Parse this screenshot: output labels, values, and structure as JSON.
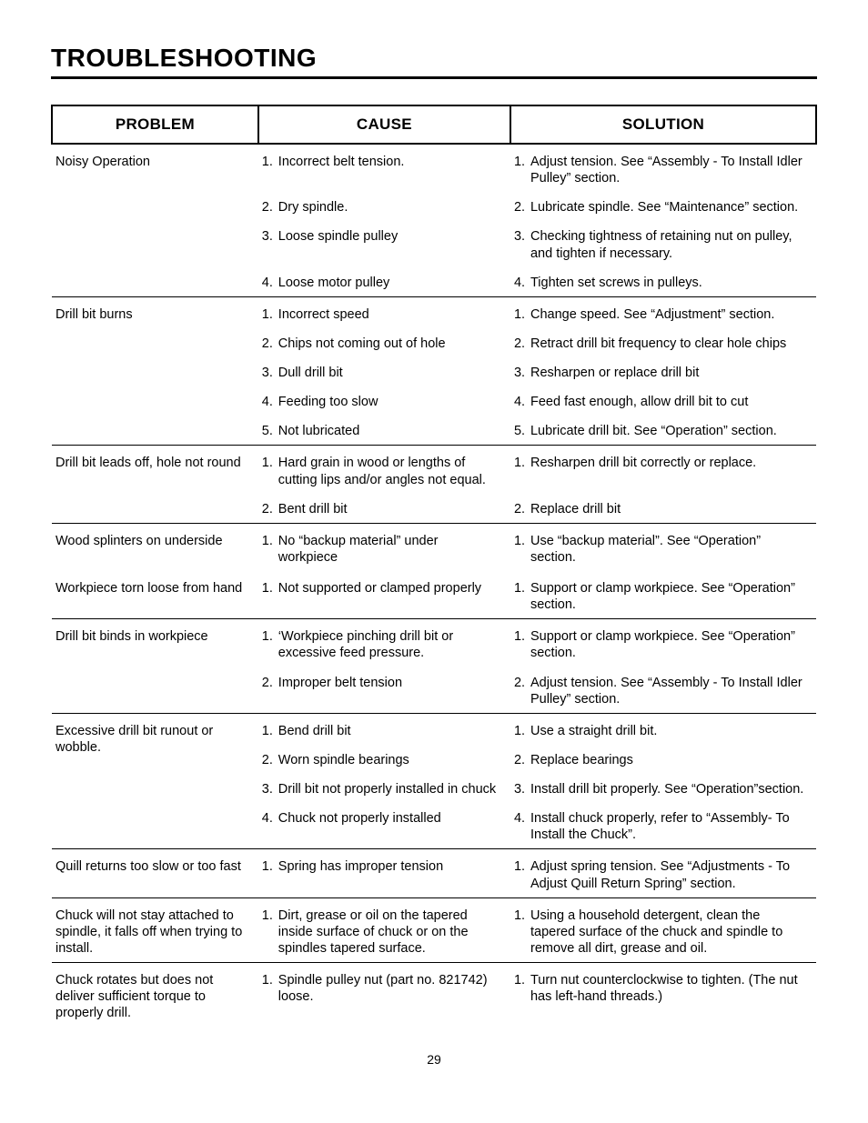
{
  "page": {
    "title": "TROUBLESHOOTING",
    "page_number": "29"
  },
  "headers": {
    "problem": "PROBLEM",
    "cause": "CAUSE",
    "solution": "SOLUTION"
  },
  "groups": [
    {
      "problem": "Noisy Operation",
      "rows": [
        {
          "n": "1.",
          "cause": "Incorrect belt tension.",
          "solution": "Adjust tension.  See “Assembly - To Install Idler Pulley” section."
        },
        {
          "n": "2.",
          "cause": "Dry spindle.",
          "solution": "Lubricate spindle. See “Maintenance” section."
        },
        {
          "n": "3.",
          "cause": "Loose spindle pulley",
          "solution": "Checking tightness of retaining nut on pulley, and tighten if necessary."
        },
        {
          "n": "4.",
          "cause": "Loose motor pulley",
          "solution": "Tighten set screws in pulleys."
        }
      ],
      "sep_after": true
    },
    {
      "problem": "Drill bit burns",
      "rows": [
        {
          "n": "1.",
          "cause": "Incorrect speed",
          "solution": "Change speed. See “Adjustment” section."
        },
        {
          "n": "2.",
          "cause": "Chips not coming out of hole",
          "solution": "Retract drill bit frequency to clear hole chips"
        },
        {
          "n": "3.",
          "cause": "Dull drill bit",
          "solution": "Resharpen or replace drill bit"
        },
        {
          "n": "4.",
          "cause": "Feeding too slow",
          "solution": "Feed fast enough, allow drill bit to cut"
        },
        {
          "n": "5.",
          "cause": "Not lubricated",
          "solution": "Lubricate drill bit. See “Operation” section."
        }
      ],
      "sep_after": true
    },
    {
      "problem": "Drill bit leads off, hole not round",
      "rows": [
        {
          "n": "1.",
          "cause": "Hard grain in wood or lengths of cutting lips and/or angles not equal.",
          "solution": "Resharpen drill bit correctly or replace."
        },
        {
          "n": "2.",
          "cause": "Bent drill bit",
          "solution": "Replace drill bit"
        }
      ],
      "sep_after": true
    },
    {
      "problem": "Wood splinters on underside",
      "rows": [
        {
          "n": "1.",
          "cause": "No “backup material” under workpiece",
          "solution": "Use “backup material”. See “Operation” section."
        }
      ],
      "sep_after": false
    },
    {
      "problem": "Workpiece torn loose from hand",
      "rows": [
        {
          "n": "1.",
          "cause": "Not supported or clamped properly",
          "solution": "Support or clamp workpiece. See “Operation” section."
        }
      ],
      "sep_after": true
    },
    {
      "problem": "Drill bit binds in workpiece",
      "rows": [
        {
          "n": "1.",
          "cause": "‘Workpiece pinching drill bit or excessive feed pressure.",
          "solution": "Support or clamp workpiece. See “Operation” section."
        },
        {
          "n": "2.",
          "cause": "Improper belt tension",
          "solution": "Adjust tension. See “Assembly - To Install Idler Pulley” section."
        }
      ],
      "sep_after": true
    },
    {
      "problem": "Excessive drill bit runout or wobble.",
      "rows": [
        {
          "n": "1.",
          "cause": "Bend drill bit",
          "solution": "Use a straight drill bit."
        },
        {
          "n": "2.",
          "cause": "Worn spindle bearings",
          "solution": "Replace bearings"
        },
        {
          "n": "3.",
          "cause": "Drill bit not properly installed in chuck",
          "solution": "Install drill bit properly. See “Operation”section."
        },
        {
          "n": "4.",
          "cause": "Chuck not properly installed",
          "solution": "Install chuck properly, refer to “Assembly- To Install the Chuck”."
        }
      ],
      "sep_after": true
    },
    {
      "problem": "Quill returns too slow or too fast",
      "rows": [
        {
          "n": "1.",
          "cause": "Spring has improper tension",
          "solution": "Adjust spring tension. See “Adjustments - To Adjust Quill Return Spring” section."
        }
      ],
      "sep_after": true
    },
    {
      "problem": "Chuck will not stay attached to spindle, it falls off when trying to install.",
      "rows": [
        {
          "n": "1.",
          "cause": "Dirt, grease or oil on the tapered inside surface of chuck or on the spindles tapered surface.",
          "solution": "Using a household detergent, clean the tapered surface of the chuck and spindle to remove all dirt, grease and oil."
        }
      ],
      "sep_after": true
    },
    {
      "problem": "Chuck rotates but does not deliver sufficient torque to properly drill.",
      "rows": [
        {
          "n": "1.",
          "cause": "Spindle pulley nut (part no. 821742) loose.",
          "solution": "Turn nut counterclockwise to tighten. (The nut has left-hand threads.)"
        }
      ],
      "sep_after": false
    }
  ]
}
